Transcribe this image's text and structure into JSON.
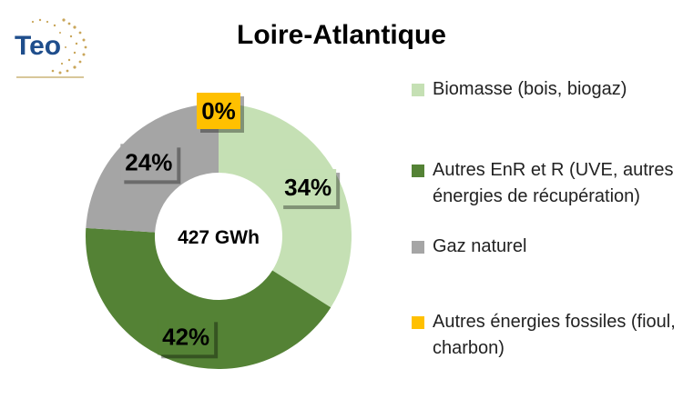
{
  "logo": {
    "text": "Teo"
  },
  "chart_data": {
    "type": "pie",
    "title": "Loire-Atlantique",
    "center_label": "427 GWh",
    "series": [
      {
        "name": "Biomasse (bois, biogaz)",
        "value": 34,
        "label": "34%",
        "color": "#c5e0b4"
      },
      {
        "name": "Autres EnR et R (UVE, autres énergies de récupération)",
        "value": 42,
        "label": "42%",
        "color": "#548235"
      },
      {
        "name": "Gaz naturel",
        "value": 24,
        "label": "24%",
        "color": "#a5a5a5"
      },
      {
        "name": "Autres énergies fossiles (fioul, charbon)",
        "value": 0,
        "label": "0%",
        "color": "#ffc000"
      }
    ],
    "legend_position": "right"
  }
}
